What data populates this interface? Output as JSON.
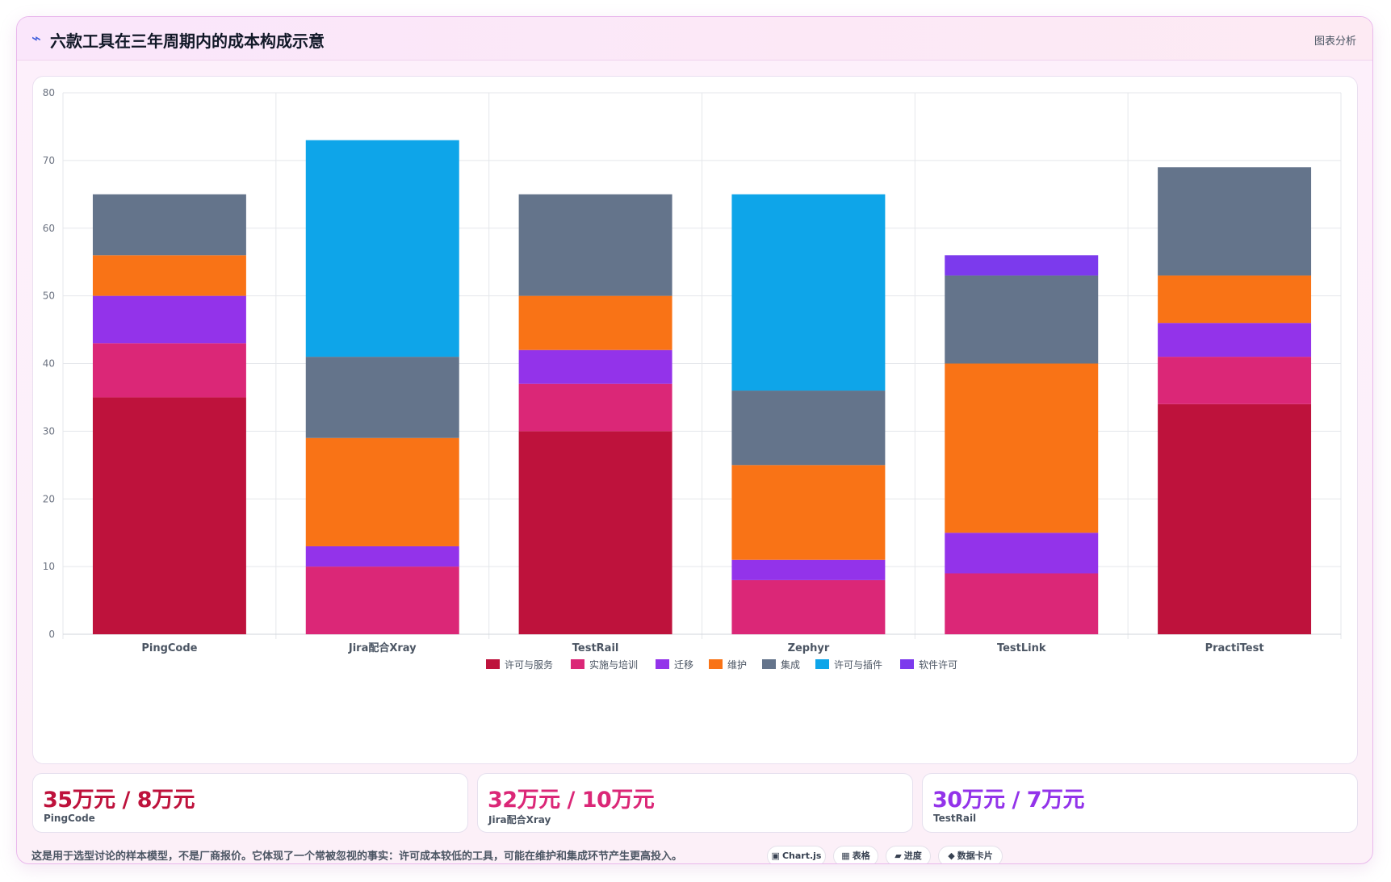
{
  "header": {
    "title": "六款工具在三年周期内的成本构成示意",
    "icon_symbol": "⌁",
    "right_link": "图表分析"
  },
  "chart_data": {
    "type": "bar",
    "stacked": true,
    "categories": [
      "PingCode",
      "Jira配合Xray",
      "TestRail",
      "Zephyr",
      "TestLink",
      "PractiTest"
    ],
    "ylim": [
      0,
      80
    ],
    "yticks": [
      0,
      10,
      20,
      30,
      40,
      50,
      60,
      70,
      80
    ],
    "grid": true,
    "legend_position": "bottom",
    "series": [
      {
        "name": "许可与服务",
        "color": "#be123c",
        "values": [
          35,
          0,
          30,
          0,
          0,
          34
        ]
      },
      {
        "name": "实施与培训",
        "color": "#db2777",
        "values": [
          8,
          10,
          7,
          8,
          9,
          7
        ]
      },
      {
        "name": "迁移",
        "color": "#9333ea",
        "values": [
          7,
          3,
          5,
          3,
          6,
          5
        ]
      },
      {
        "name": "维护",
        "color": "#f97316",
        "values": [
          6,
          16,
          8,
          14,
          25,
          7
        ]
      },
      {
        "name": "集成",
        "color": "#64748b",
        "values": [
          9,
          12,
          15,
          11,
          13,
          16
        ]
      },
      {
        "name": "许可与插件",
        "color": "#0ea5e9",
        "values": [
          0,
          32,
          0,
          29,
          0,
          0
        ]
      },
      {
        "name": "软件许可",
        "color": "#7c3aed",
        "values": [
          0,
          0,
          0,
          0,
          3,
          0
        ]
      }
    ]
  },
  "stats": [
    {
      "value": "35万元 / 8万元",
      "label": "PingCode",
      "color": "#be123c"
    },
    {
      "value": "32万元 / 10万元",
      "label": "Jira配合Xray",
      "color": "#db2777"
    },
    {
      "value": "30万元 / 7万元",
      "label": "TestRail",
      "color": "#9333ea"
    }
  ],
  "footnote": "这是用于选型讨论的样本模型，不是厂商报价。它体现了一个常被忽视的事实：许可成本较低的工具，可能在维护和集成环节产生更高投入。",
  "tags": [
    {
      "icon": "▣",
      "label": "Chart.js"
    },
    {
      "icon": "▦",
      "label": "表格"
    },
    {
      "icon": "▰",
      "label": "进度"
    },
    {
      "icon": "◆",
      "label": "数据卡片"
    }
  ]
}
